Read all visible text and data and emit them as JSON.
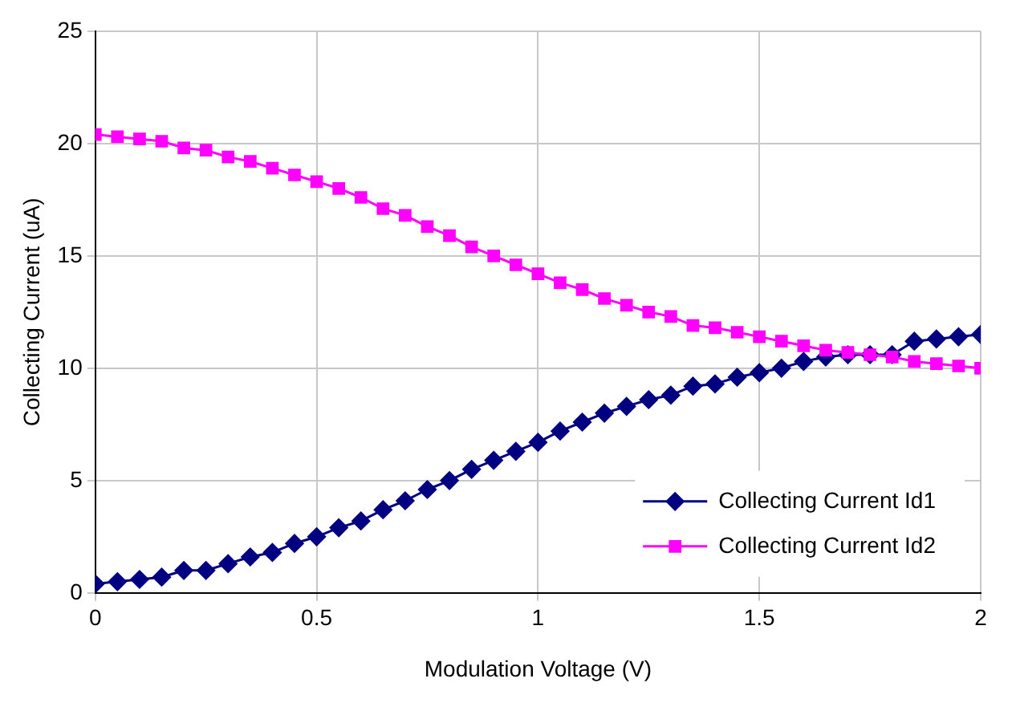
{
  "chart_data": {
    "type": "line",
    "xlabel": "Modulation Voltage (V)",
    "ylabel": "Collecting Current (uA)",
    "x": [
      0,
      0.05,
      0.1,
      0.15,
      0.2,
      0.25,
      0.3,
      0.35,
      0.4,
      0.45,
      0.5,
      0.55,
      0.6,
      0.65,
      0.7,
      0.75,
      0.8,
      0.85,
      0.9,
      0.95,
      1,
      1.05,
      1.1,
      1.15,
      1.2,
      1.25,
      1.3,
      1.35,
      1.4,
      1.45,
      1.5,
      1.55,
      1.6,
      1.65,
      1.7,
      1.75,
      1.8,
      1.85,
      1.9,
      1.95,
      2
    ],
    "series": [
      {
        "name": "Collecting Current Id1",
        "color": "#000080",
        "marker": "diamond",
        "values": [
          0.4,
          0.5,
          0.6,
          0.7,
          1.0,
          1.0,
          1.3,
          1.6,
          1.8,
          2.2,
          2.5,
          2.9,
          3.2,
          3.7,
          4.1,
          4.6,
          5.0,
          5.5,
          5.9,
          6.3,
          6.7,
          7.2,
          7.6,
          8.0,
          8.3,
          8.6,
          8.8,
          9.2,
          9.3,
          9.6,
          9.8,
          10.0,
          10.3,
          10.5,
          10.6,
          10.6,
          10.6,
          11.2,
          11.3,
          11.4,
          11.5
        ]
      },
      {
        "name": "Collecting Current Id2",
        "color": "#ff00ff",
        "marker": "square",
        "values": [
          20.4,
          20.3,
          20.2,
          20.1,
          19.8,
          19.7,
          19.4,
          19.2,
          18.9,
          18.6,
          18.3,
          18.0,
          17.6,
          17.1,
          16.8,
          16.3,
          15.9,
          15.4,
          15.0,
          14.6,
          14.2,
          13.8,
          13.5,
          13.1,
          12.8,
          12.5,
          12.3,
          11.9,
          11.8,
          11.6,
          11.4,
          11.2,
          11.0,
          10.8,
          10.7,
          10.6,
          10.5,
          10.3,
          10.2,
          10.1,
          10.0
        ]
      }
    ],
    "xlim": [
      0,
      2
    ],
    "xticks": [
      0,
      0.5,
      1,
      1.5,
      2
    ],
    "ylim": [
      0,
      25
    ],
    "yticks": [
      0,
      5,
      10,
      15,
      20,
      25
    ],
    "grid": true,
    "legend": "bottom right"
  }
}
